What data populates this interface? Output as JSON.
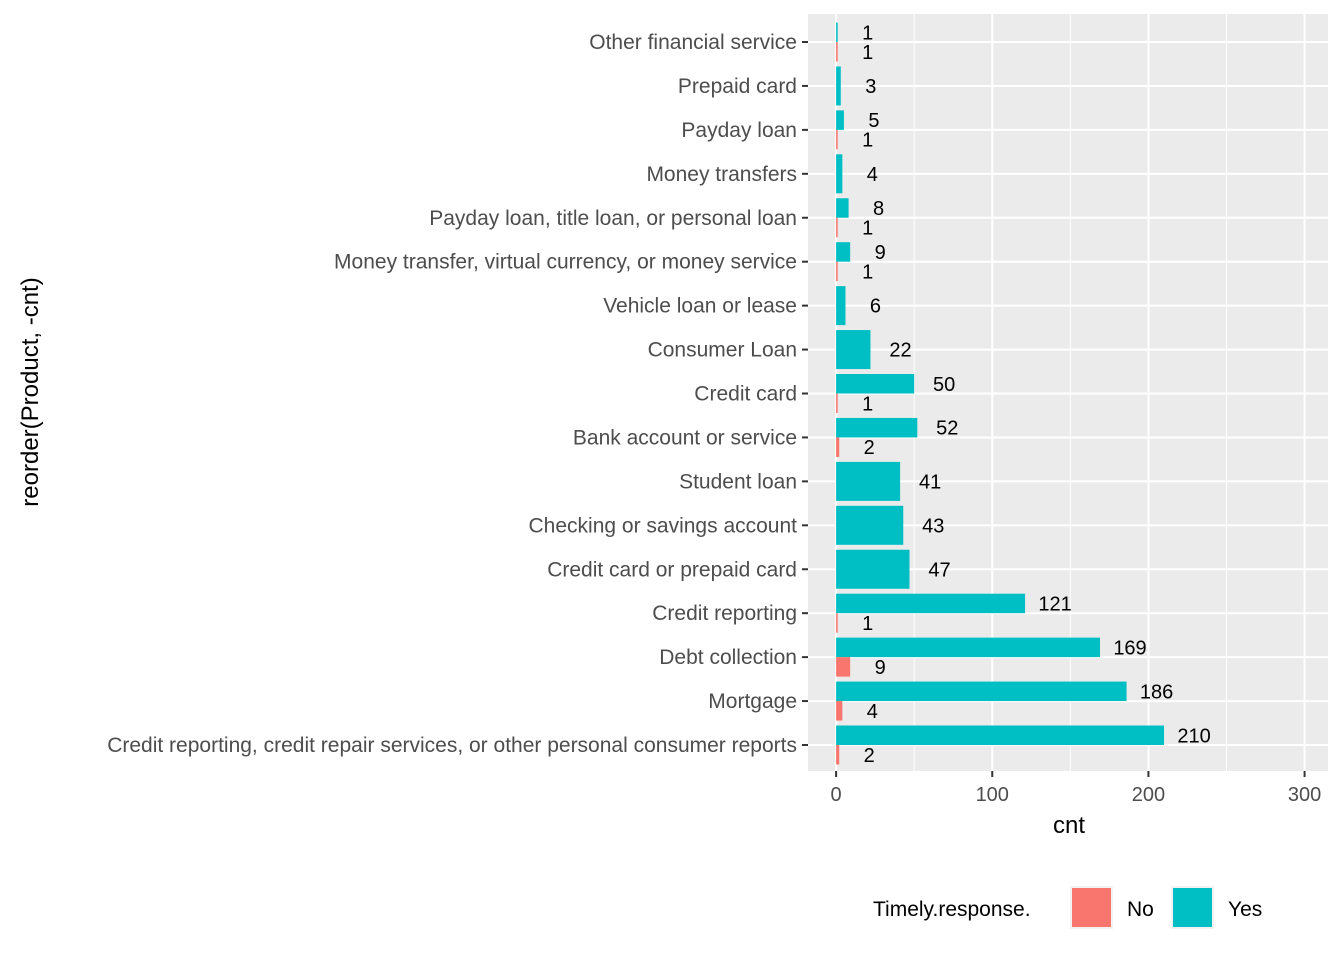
{
  "chart_data": {
    "type": "bar",
    "orientation": "horizontal",
    "stacking": "dodge",
    "categories": [
      "Other financial service",
      "Prepaid card",
      "Payday loan",
      "Money transfers",
      "Payday loan, title loan, or personal loan",
      "Money transfer, virtual currency, or money service",
      "Vehicle loan or lease",
      "Consumer Loan",
      "Credit card",
      "Bank account or service",
      "Student loan",
      "Checking or savings account",
      "Credit card or prepaid card",
      "Credit reporting",
      "Debt collection",
      "Mortgage",
      "Credit reporting, credit repair services, or other personal consumer reports"
    ],
    "series": [
      {
        "name": "No",
        "color": "#F8766D",
        "values": [
          1,
          null,
          1,
          null,
          1,
          1,
          null,
          null,
          1,
          2,
          null,
          null,
          null,
          1,
          9,
          4,
          2
        ]
      },
      {
        "name": "Yes",
        "color": "#00BFC4",
        "values": [
          1,
          3,
          5,
          4,
          8,
          9,
          6,
          22,
          50,
          52,
          41,
          43,
          47,
          121,
          169,
          186,
          210
        ]
      }
    ],
    "xlabel": "cnt",
    "ylabel": "reorder(Product, -cnt)",
    "xlim": [
      -18,
      315
    ],
    "xticks": [
      "0",
      "100",
      "200",
      "300"
    ],
    "xtick_values": [
      0,
      100,
      200,
      300
    ],
    "legend": {
      "title": "Timely.response.",
      "position": "bottom",
      "entries": [
        "No",
        "Yes"
      ]
    },
    "grid": true,
    "panel_background": "#EBEBEB"
  }
}
